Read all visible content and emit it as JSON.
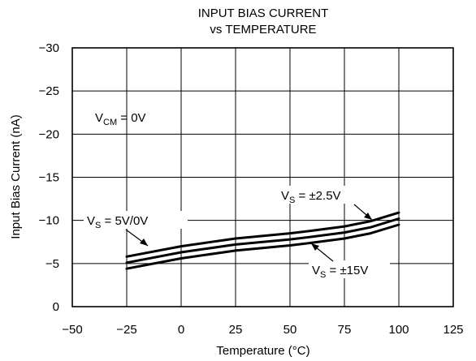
{
  "chart_data": {
    "type": "line",
    "title": [
      "INPUT BIAS CURRENT",
      "vs TEMPERATURE"
    ],
    "xlabel": "Temperature (°C)",
    "ylabel": "Input Bias Current (nA)",
    "xlim": [
      -50,
      125
    ],
    "ylim": [
      0,
      -30
    ],
    "x_ticks": [
      -50,
      -25,
      0,
      25,
      50,
      75,
      100,
      125
    ],
    "y_ticks": [
      0,
      -5,
      -10,
      -15,
      -20,
      -25,
      -30
    ],
    "x_tick_labels": [
      "−50",
      "−25",
      "0",
      "25",
      "50",
      "75",
      "100",
      "125"
    ],
    "y_tick_labels": [
      "0",
      "−5",
      "−10",
      "−15",
      "−20",
      "−25",
      "−30"
    ],
    "grid": true,
    "series": [
      {
        "x": [
          -25,
          0,
          25,
          50,
          60,
          75,
          87,
          100
        ],
        "y": [
          -5.8,
          -7.0,
          -7.9,
          -8.5,
          -8.8,
          -9.3,
          -9.9,
          -10.9
        ]
      },
      {
        "x": [
          -25,
          0,
          25,
          50,
          60,
          75,
          87,
          100
        ],
        "y": [
          -5.1,
          -6.3,
          -7.2,
          -7.8,
          -8.1,
          -8.6,
          -9.2,
          -10.2
        ]
      },
      {
        "x": [
          -25,
          0,
          25,
          50,
          60,
          75,
          87,
          100
        ],
        "y": [
          -4.4,
          -5.6,
          -6.5,
          -7.1,
          -7.4,
          -7.9,
          -8.5,
          -9.5
        ]
      }
    ],
    "annotations": {
      "vcm": {
        "main": "V",
        "sub": "CM",
        "rest": " = 0V"
      },
      "vs_top": {
        "main": "V",
        "sub": "S",
        "rest": "  = 5V/0V"
      },
      "vs_mid": {
        "main": "V",
        "sub": "S",
        "rest": "  = ±2.5V"
      },
      "vs_bot": {
        "main": "V",
        "sub": "S",
        "rest": "  = ±15V"
      }
    }
  }
}
